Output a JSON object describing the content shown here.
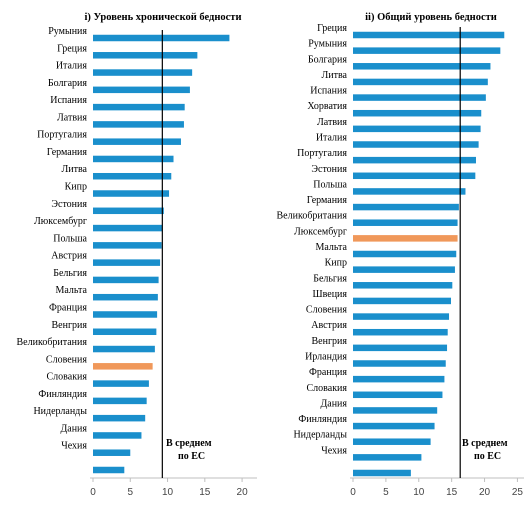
{
  "colors": {
    "bar": "#1a8fcc",
    "highlight": "#f0985a",
    "avg_line": "#000000",
    "axis": "#bfbfbf"
  },
  "chart_data": [
    {
      "type": "bar",
      "orientation": "horizontal",
      "title": "i) Уровень хронической бедности",
      "average_label_1": "В среднем",
      "average_label_2": "по ЕС",
      "average": 9.3,
      "xlim": [
        0,
        22
      ],
      "xticks": [
        "0",
        "5",
        "10",
        "15",
        "20"
      ],
      "highlight": "Словения",
      "rows": [
        {
          "label": "Румыния",
          "value": 18.3
        },
        {
          "label": "Греция",
          "value": 14.0
        },
        {
          "label": "Италия",
          "value": 13.3
        },
        {
          "label": "Болгария",
          "value": 13.0
        },
        {
          "label": "Испания",
          "value": 12.3
        },
        {
          "label": "Латвия",
          "value": 12.2
        },
        {
          "label": "Португалия",
          "value": 11.8
        },
        {
          "label": "Германия",
          "value": 10.8
        },
        {
          "label": "Литва",
          "value": 10.5
        },
        {
          "label": "Кипр",
          "value": 10.2
        },
        {
          "label": "Эстония",
          "value": 9.5
        },
        {
          "label": "Люксембург",
          "value": 9.3
        },
        {
          "label": "Польша",
          "value": 9.2
        },
        {
          "label": "Австрия",
          "value": 9.0
        },
        {
          "label": "Бельгия",
          "value": 8.8
        },
        {
          "label": "Мальта",
          "value": 8.7
        },
        {
          "label": "Франция",
          "value": 8.6
        },
        {
          "label": "Венгрия",
          "value": 8.5
        },
        {
          "label": "Великобритания",
          "value": 8.3
        },
        {
          "label": "Словения",
          "value": 8.0
        },
        {
          "label": "Словакия",
          "value": 7.5
        },
        {
          "label": "Финляндия",
          "value": 7.2
        },
        {
          "label": "Нидерланды",
          "value": 7.0
        },
        {
          "label": "Дания",
          "value": 6.5
        },
        {
          "label": "Чехия",
          "value": 5.0
        },
        {
          "label": "",
          "value": 4.2
        }
      ]
    },
    {
      "type": "bar",
      "orientation": "horizontal",
      "title": "ii) Общий уровень бедности",
      "average_label_1": "В среднем",
      "average_label_2": "по ЕС",
      "average": 16.3,
      "xlim": [
        0,
        26
      ],
      "xticks": [
        "0",
        "5",
        "10",
        "15",
        "20",
        "25"
      ],
      "highlight": "Люксембург",
      "rows": [
        {
          "label": "Греция",
          "value": 23.0
        },
        {
          "label": "Румыния",
          "value": 22.4
        },
        {
          "label": "Болгария",
          "value": 20.9
        },
        {
          "label": "Литва",
          "value": 20.5
        },
        {
          "label": "Испания",
          "value": 20.2
        },
        {
          "label": "Хорватия",
          "value": 19.5
        },
        {
          "label": "Латвия",
          "value": 19.4
        },
        {
          "label": "Италия",
          "value": 19.1
        },
        {
          "label": "Португалия",
          "value": 18.7
        },
        {
          "label": "Эстония",
          "value": 18.6
        },
        {
          "label": "Польша",
          "value": 17.1
        },
        {
          "label": "Германия",
          "value": 16.1
        },
        {
          "label": "Великобритания",
          "value": 15.9
        },
        {
          "label": "Люксембург",
          "value": 15.9
        },
        {
          "label": "Мальта",
          "value": 15.7
        },
        {
          "label": "Кипр",
          "value": 15.5
        },
        {
          "label": "Бельгия",
          "value": 15.1
        },
        {
          "label": "Швеция",
          "value": 14.9
        },
        {
          "label": "Словения",
          "value": 14.6
        },
        {
          "label": "Австрия",
          "value": 14.4
        },
        {
          "label": "Венгрия",
          "value": 14.3
        },
        {
          "label": "Ирландия",
          "value": 14.1
        },
        {
          "label": "Франция",
          "value": 13.9
        },
        {
          "label": "Словакия",
          "value": 13.6
        },
        {
          "label": "Дания",
          "value": 12.8
        },
        {
          "label": "Финляндия",
          "value": 12.4
        },
        {
          "label": "Нидерланды",
          "value": 11.8
        },
        {
          "label": "Чехия",
          "value": 10.4
        },
        {
          "label": "",
          "value": 8.8
        }
      ]
    }
  ]
}
